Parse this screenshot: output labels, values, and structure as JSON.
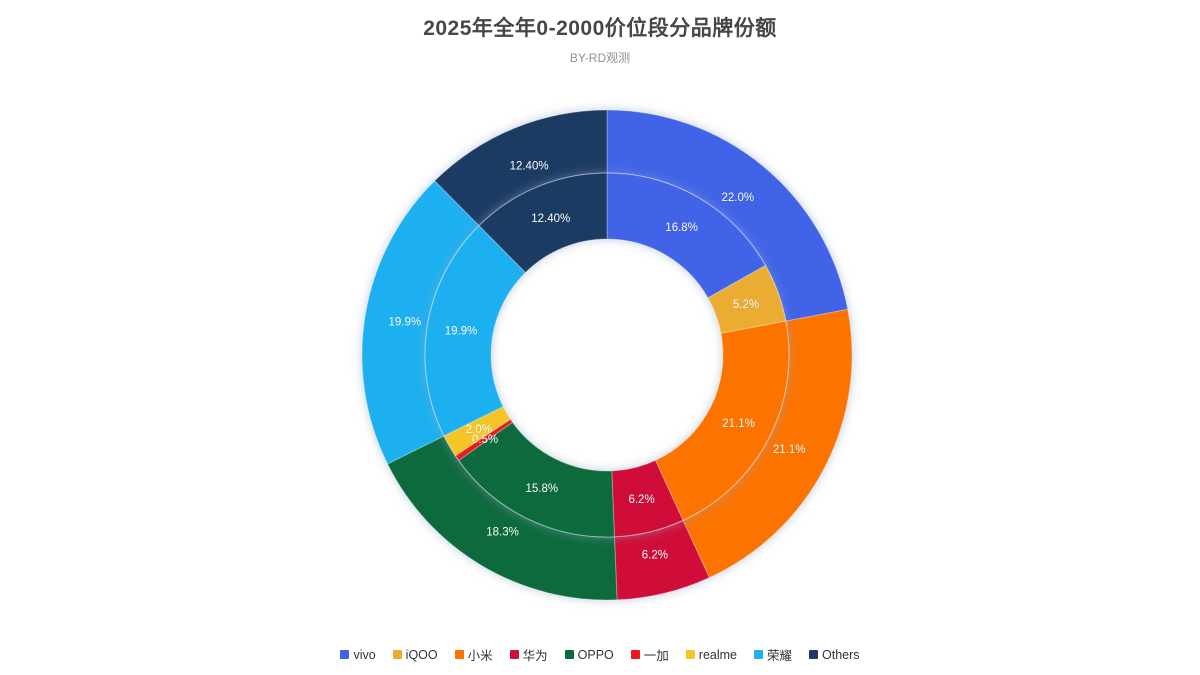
{
  "chart_data": {
    "type": "pie",
    "variant": "nested-donut-two-rings",
    "title": "2025年全年0-2000价位段分品牌份额",
    "subtitle": "BY-RD观测",
    "legend_position": "bottom",
    "background": "#ffffff",
    "center": [
      607,
      355
    ],
    "radii": {
      "inner_hole": 116,
      "ring_boundary": 182,
      "outer": 245
    },
    "label_radius": {
      "outer": 205,
      "inner": 148
    },
    "start_angle_deg": 0,
    "inner_ring": [
      {
        "name": "vivo",
        "value": 16.8,
        "label": "16.8%",
        "color": "#4163E8"
      },
      {
        "name": "iQOO",
        "value": 5.2,
        "label": "5.2%",
        "color": "#EBAC33"
      },
      {
        "name": "小米",
        "value": 21.1,
        "label": "21.1%",
        "color": "#FC7300"
      },
      {
        "name": "华为",
        "value": 6.2,
        "label": "6.2%",
        "color": "#CF1037"
      },
      {
        "name": "OPPO",
        "value": 15.8,
        "label": "15.8%",
        "color": "#076B3C"
      },
      {
        "name": "一加",
        "value": 0.5,
        "label": "0.5%",
        "color": "#E91A1F"
      },
      {
        "name": "realme",
        "value": 2.0,
        "label": "2.0%",
        "color": "#F5C428"
      },
      {
        "name": "荣耀",
        "value": 19.9,
        "label": "19.9%",
        "color": "#1EB0F0"
      },
      {
        "name": "Others",
        "value": 12.4,
        "label": "12.40%",
        "color": "#1E3A64"
      }
    ],
    "outer_ring": [
      {
        "name": "vivo",
        "value": 22.0,
        "label": "22.0%",
        "color": "#4163E8"
      },
      {
        "name": "小米",
        "value": 21.1,
        "label": "21.1%",
        "color": "#FC7300"
      },
      {
        "name": "华为",
        "value": 6.2,
        "label": "6.2%",
        "color": "#CF1037"
      },
      {
        "name": "OPPO",
        "value": 18.3,
        "label": "18.3%",
        "color": "#076B3C"
      },
      {
        "name": "荣耀",
        "value": 19.9,
        "label": "19.9%",
        "color": "#1EB0F0"
      },
      {
        "name": "Others",
        "value": 12.4,
        "label": "12.40%",
        "color": "#1E3A64"
      }
    ],
    "legend": [
      {
        "label": "vivo",
        "color": "#4163E8"
      },
      {
        "label": "iQOO",
        "color": "#EBAC33"
      },
      {
        "label": "小米",
        "color": "#FC7300"
      },
      {
        "label": "华为",
        "color": "#CF1037"
      },
      {
        "label": "OPPO",
        "color": "#076B3C"
      },
      {
        "label": "一加",
        "color": "#E91A1F"
      },
      {
        "label": "realme",
        "color": "#F5C428"
      },
      {
        "label": "荣耀",
        "color": "#1EB0F0"
      },
      {
        "label": "Others",
        "color": "#1E3A64"
      }
    ]
  }
}
